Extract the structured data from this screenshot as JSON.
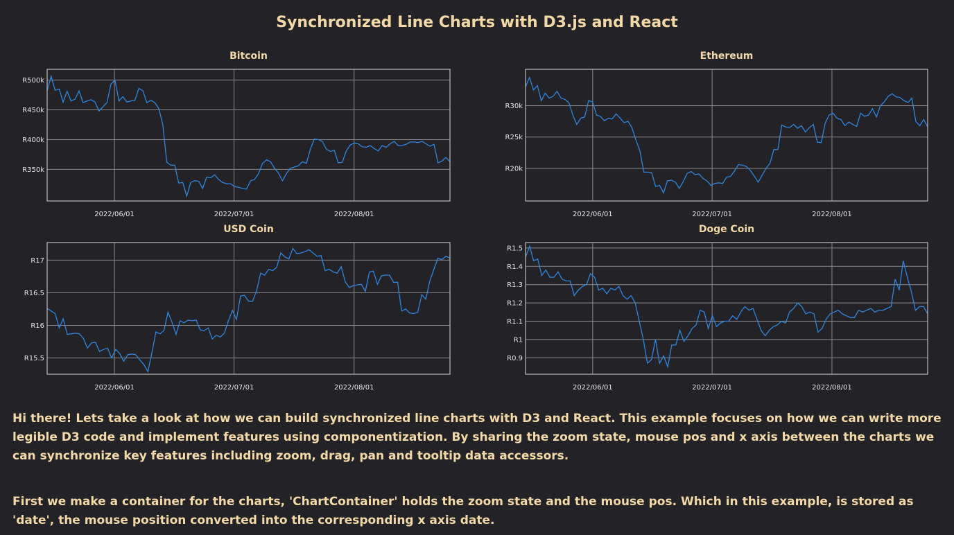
{
  "page": {
    "title": "Synchronized Line Charts with D3.js and React",
    "paragraph1": "Hi there! Lets take a look at how we can build synchronized line charts with D3 and React. This example focuses on how we can write more legible D3 code and implement features using componentization. By sharing the zoom state, mouse pos and x axis between the charts we can synchronize key features including zoom, drag, pan and tooltip data accessors.",
    "paragraph2": "First we make a container for the charts, 'ChartContainer' holds the zoom state and the mouse pos. Which in this example, is stored as 'date', the mouse position converted into the corresponding x axis date."
  },
  "colors": {
    "background": "#232226",
    "title": "#f4d9a8",
    "line": "#2e86e0"
  },
  "chart_data": [
    {
      "type": "line",
      "title": "Bitcoin",
      "xlabel": "",
      "ylabel": "",
      "x_ticks": [
        "2022/06/01",
        "2022/07/01",
        "2022/08/01"
      ],
      "y_ticks": [
        {
          "value": 350000,
          "label": "R350k"
        },
        {
          "value": 400000,
          "label": "R400k"
        },
        {
          "value": 450000,
          "label": "R450k"
        },
        {
          "value": 500000,
          "label": "R500k"
        }
      ],
      "ylim": [
        297000,
        518000
      ],
      "grid": true,
      "series": [
        {
          "values": [
            482,
            506,
            483,
            485,
            463,
            481,
            465,
            468,
            482,
            462,
            465,
            467,
            463,
            448,
            455,
            462,
            493,
            500,
            465,
            472,
            463,
            465,
            466,
            486,
            482,
            462,
            466,
            462,
            452,
            425,
            362,
            357,
            357,
            327,
            328,
            305,
            328,
            331,
            330,
            318,
            337,
            336,
            341,
            333,
            328,
            326,
            326,
            321,
            320,
            318,
            317,
            331,
            333,
            343,
            360,
            366,
            363,
            352,
            344,
            331,
            343,
            352,
            354,
            356,
            363,
            360,
            384,
            401,
            400,
            397,
            384,
            380,
            382,
            361,
            362,
            381,
            391,
            394,
            393,
            388,
            387,
            390,
            385,
            381,
            390,
            387,
            393,
            397,
            390,
            390,
            392,
            396,
            396,
            395,
            397,
            393,
            389,
            392,
            361,
            364,
            370,
            363
          ]
        }
      ]
    },
    {
      "type": "line",
      "title": "Ethereum",
      "xlabel": "",
      "ylabel": "",
      "x_ticks": [
        "2022/06/01",
        "2022/07/01",
        "2022/08/01"
      ],
      "y_ticks": [
        {
          "value": 20000,
          "label": "R20k"
        },
        {
          "value": 25000,
          "label": "R25k"
        },
        {
          "value": 30000,
          "label": "R30k"
        }
      ],
      "ylim": [
        14800,
        35800
      ],
      "grid": true,
      "series": [
        {
          "values": [
            33.0,
            34.5,
            32.5,
            33.2,
            30.8,
            32.0,
            31.2,
            31.5,
            32.3,
            31.2,
            31.0,
            30.5,
            28.5,
            27.0,
            28.0,
            28.2,
            30.8,
            30.6,
            28.5,
            28.3,
            27.6,
            28.0,
            27.9,
            28.7,
            28.0,
            27.3,
            27.5,
            26.5,
            24.5,
            22.8,
            19.4,
            19.4,
            19.3,
            17.1,
            17.3,
            16.1,
            18.0,
            18.1,
            17.8,
            16.8,
            17.9,
            19.2,
            19.5,
            19.0,
            19.1,
            18.4,
            18.0,
            17.3,
            17.6,
            17.7,
            17.6,
            18.6,
            18.7,
            19.6,
            20.6,
            20.5,
            20.3,
            19.7,
            18.8,
            17.8,
            18.9,
            20.0,
            20.8,
            23.0,
            23.0,
            26.9,
            26.6,
            26.5,
            27.0,
            26.4,
            26.8,
            25.8,
            26.5,
            27.0,
            24.2,
            24.1,
            27.2,
            28.5,
            28.8,
            28.0,
            27.8,
            26.8,
            27.4,
            27.0,
            26.7,
            28.8,
            28.3,
            28.5,
            29.5,
            28.2,
            30.0,
            30.6,
            31.5,
            31.9,
            31.4,
            31.3,
            30.8,
            30.5,
            31.2,
            27.5,
            26.8,
            27.8,
            26.6
          ]
        }
      ]
    },
    {
      "type": "line",
      "title": "USD Coin",
      "xlabel": "",
      "ylabel": "",
      "x_ticks": [
        "2022/06/01",
        "2022/07/01",
        "2022/08/01"
      ],
      "y_ticks": [
        {
          "value": 15.5,
          "label": "R15.5"
        },
        {
          "value": 16,
          "label": "R16"
        },
        {
          "value": 16.5,
          "label": "R16.5"
        },
        {
          "value": 17,
          "label": "R17"
        }
      ],
      "ylim": [
        15.25,
        17.27
      ],
      "grid": true,
      "series": [
        {
          "values": [
            16.26,
            16.22,
            16.18,
            15.96,
            16.1,
            15.86,
            15.87,
            15.88,
            15.87,
            15.8,
            15.65,
            15.73,
            15.74,
            15.6,
            15.63,
            15.65,
            15.5,
            15.63,
            15.57,
            15.45,
            15.55,
            15.56,
            15.55,
            15.47,
            15.4,
            15.29,
            15.58,
            15.9,
            15.87,
            15.92,
            16.2,
            16.05,
            15.86,
            16.07,
            16.04,
            16.08,
            16.07,
            16.08,
            15.93,
            15.92,
            15.96,
            15.79,
            15.85,
            15.82,
            15.88,
            16.07,
            16.23,
            16.09,
            16.45,
            16.46,
            16.37,
            16.37,
            16.53,
            16.8,
            16.77,
            16.86,
            16.84,
            16.89,
            17.11,
            17.05,
            17.02,
            17.18,
            17.1,
            17.11,
            17.13,
            17.16,
            17.11,
            17.06,
            17.07,
            16.84,
            16.86,
            16.82,
            16.8,
            16.9,
            16.67,
            16.58,
            16.61,
            16.62,
            16.63,
            16.52,
            16.82,
            16.83,
            16.63,
            16.76,
            16.77,
            16.77,
            16.66,
            16.66,
            16.22,
            16.25,
            16.19,
            16.18,
            16.2,
            16.47,
            16.4,
            16.68,
            16.86,
            17.03,
            17.01,
            17.06,
            17.03
          ]
        }
      ]
    },
    {
      "type": "line",
      "title": "Doge Coin",
      "xlabel": "",
      "ylabel": "",
      "x_ticks": [
        "2022/06/01",
        "2022/07/01",
        "2022/08/01"
      ],
      "y_ticks": [
        {
          "value": 0.9,
          "label": "R0.9"
        },
        {
          "value": 1.0,
          "label": "R1"
        },
        {
          "value": 1.1,
          "label": "R1.1"
        },
        {
          "value": 1.2,
          "label": "R1.2"
        },
        {
          "value": 1.3,
          "label": "R1.3"
        },
        {
          "value": 1.4,
          "label": "R1.4"
        },
        {
          "value": 1.5,
          "label": "R1.5"
        }
      ],
      "ylim": [
        0.81,
        1.53
      ],
      "grid": true,
      "series": [
        {
          "values": [
            1.45,
            1.51,
            1.43,
            1.44,
            1.35,
            1.38,
            1.34,
            1.34,
            1.37,
            1.33,
            1.32,
            1.32,
            1.24,
            1.27,
            1.29,
            1.3,
            1.36,
            1.34,
            1.27,
            1.28,
            1.25,
            1.28,
            1.27,
            1.29,
            1.24,
            1.22,
            1.24,
            1.2,
            1.1,
            1.0,
            0.87,
            0.89,
            1.0,
            0.87,
            0.91,
            0.85,
            0.97,
            0.97,
            1.05,
            0.99,
            1.02,
            1.06,
            1.08,
            1.16,
            1.15,
            1.06,
            1.13,
            1.07,
            1.09,
            1.1,
            1.1,
            1.13,
            1.11,
            1.15,
            1.18,
            1.16,
            1.17,
            1.11,
            1.05,
            1.02,
            1.05,
            1.07,
            1.08,
            1.1,
            1.09,
            1.15,
            1.17,
            1.2,
            1.18,
            1.14,
            1.15,
            1.14,
            1.04,
            1.06,
            1.11,
            1.14,
            1.15,
            1.16,
            1.14,
            1.13,
            1.12,
            1.12,
            1.16,
            1.15,
            1.16,
            1.17,
            1.15,
            1.16,
            1.16,
            1.17,
            1.18,
            1.33,
            1.27,
            1.43,
            1.34,
            1.26,
            1.16,
            1.18,
            1.18,
            1.14
          ]
        }
      ]
    }
  ]
}
